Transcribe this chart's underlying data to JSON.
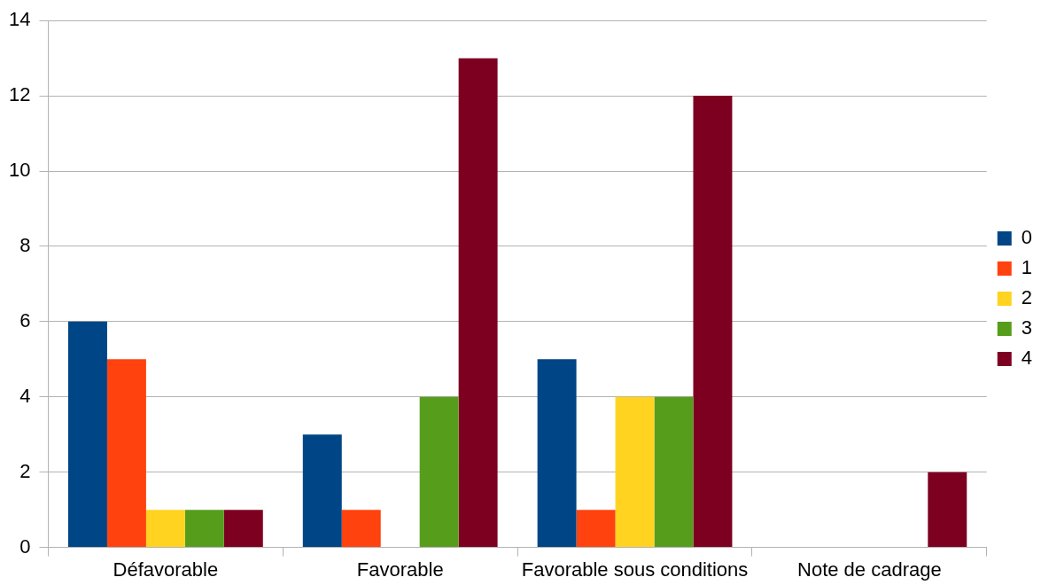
{
  "chart_data": {
    "type": "bar",
    "categories": [
      "Défavorable",
      "Favorable",
      "Favorable sous conditions",
      "Note de cadrage"
    ],
    "series": [
      {
        "name": "0",
        "color": "#004586",
        "values": [
          6,
          3,
          5,
          0
        ]
      },
      {
        "name": "1",
        "color": "#ff420e",
        "values": [
          5,
          1,
          1,
          0
        ]
      },
      {
        "name": "2",
        "color": "#ffd320",
        "values": [
          1,
          0,
          4,
          0
        ]
      },
      {
        "name": "3",
        "color": "#579d1c",
        "values": [
          1,
          4,
          4,
          0
        ]
      },
      {
        "name": "4",
        "color": "#7e0021",
        "values": [
          1,
          13,
          12,
          2
        ]
      }
    ],
    "ylim": [
      0,
      14
    ],
    "yticks": [
      0,
      2,
      4,
      6,
      8,
      10,
      12,
      14
    ],
    "grid": "y",
    "legend": "right"
  }
}
